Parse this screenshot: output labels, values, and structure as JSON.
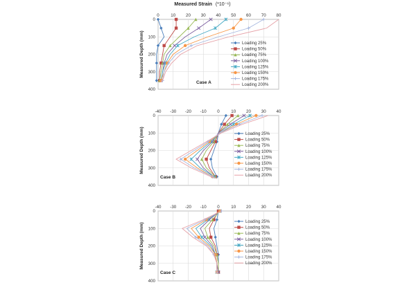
{
  "figure": {
    "title": "Measured Strain",
    "title_units": "(*10⁻⁶)",
    "ylabel": "Measured Depth (mm)"
  },
  "legend": [
    {
      "label": "Loading 25%",
      "color": "#4a7ebb",
      "marker": "diamond"
    },
    {
      "label": "Loading 50%",
      "color": "#be4b48",
      "marker": "square"
    },
    {
      "label": "Loading 75%",
      "color": "#98b954",
      "marker": "triangle"
    },
    {
      "label": "Loading 100%",
      "color": "#7d60a0",
      "marker": "x"
    },
    {
      "label": "Loading 125%",
      "color": "#46aac5",
      "marker": "star"
    },
    {
      "label": "Loading 150%",
      "color": "#f79646",
      "marker": "circle"
    },
    {
      "label": "Loading 175%",
      "color": "#a6b7df",
      "marker": "plus"
    },
    {
      "label": "Loading 200%",
      "color": "#e6a0a6",
      "marker": "none"
    }
  ],
  "chart_data": [
    {
      "type": "line",
      "case_label": "Case A",
      "xlabel": "Measured Strain (*10⁻⁶)",
      "ylabel": "Measured Depth (mm)",
      "xlim": [
        0,
        80
      ],
      "xticks": [
        0,
        10,
        20,
        30,
        40,
        50,
        60,
        70,
        80
      ],
      "ylim": [
        0,
        400
      ],
      "yticks": [
        0,
        100,
        200,
        300,
        400
      ],
      "y_inverted": true,
      "x_axis_position": "top",
      "grid": true,
      "legend_position": "right",
      "depths": [
        0,
        50,
        100,
        150,
        200,
        250,
        300,
        350,
        360
      ],
      "series": [
        {
          "name": "Loading 25%",
          "values": [
            0,
            2,
            4,
            0,
            -1,
            -1,
            -1,
            -1,
            -1
          ]
        },
        {
          "name": "Loading 50%",
          "values": [
            12,
            12,
            8,
            4,
            3,
            2,
            1,
            1,
            1
          ]
        },
        {
          "name": "Loading 75%",
          "values": [
            25,
            20,
            14,
            8,
            4,
            3,
            2,
            1,
            1
          ]
        },
        {
          "name": "Loading 100%",
          "values": [
            35,
            27,
            18,
            11,
            6,
            4,
            3,
            2,
            1
          ]
        },
        {
          "name": "Loading 125%",
          "values": [
            45,
            38,
            24,
            13,
            8,
            5,
            3,
            2,
            1
          ]
        },
        {
          "name": "Loading 150%",
          "values": [
            55,
            50,
            33,
            18,
            10,
            6,
            4,
            2,
            1
          ]
        },
        {
          "name": "Loading 175%",
          "values": [
            70,
            60,
            40,
            22,
            12,
            7,
            4,
            3,
            2
          ]
        },
        {
          "name": "Loading 200%",
          "values": [
            80,
            72,
            47,
            26,
            15,
            9,
            5,
            3,
            2
          ]
        }
      ]
    },
    {
      "type": "line",
      "case_label": "Case B",
      "xlim": [
        -40,
        40
      ],
      "xticks": [
        -40,
        -30,
        -20,
        -10,
        0,
        10,
        20,
        30,
        40
      ],
      "ylim": [
        0,
        400
      ],
      "yticks": [
        0,
        100,
        200,
        300,
        400
      ],
      "y_inverted": true,
      "x_axis_position": "top",
      "grid": true,
      "legend_position": "right",
      "depths": [
        0,
        50,
        100,
        150,
        200,
        250,
        300,
        350,
        360
      ],
      "series": [
        {
          "name": "Loading 25%",
          "values": [
            5,
            2,
            0,
            -1,
            -3,
            -5,
            -4,
            -1,
            -1
          ]
        },
        {
          "name": "Loading 50%",
          "values": [
            9,
            4,
            0,
            -2,
            -5,
            -8,
            -6,
            -2,
            -1
          ]
        },
        {
          "name": "Loading 75%",
          "values": [
            13,
            6,
            0,
            -3,
            -8,
            -11,
            -8,
            -2,
            -1
          ]
        },
        {
          "name": "Loading 100%",
          "values": [
            17,
            8,
            0,
            -4,
            -10,
            -14,
            -10,
            -3,
            -1
          ]
        },
        {
          "name": "Loading 125%",
          "values": [
            21,
            10,
            1,
            -5,
            -12,
            -18,
            -12,
            -3,
            -1
          ]
        },
        {
          "name": "Loading 150%",
          "values": [
            25,
            12,
            1,
            -6,
            -14,
            -22,
            -14,
            -4,
            -1
          ]
        },
        {
          "name": "Loading 175%",
          "values": [
            29,
            14,
            1,
            -7,
            -16,
            -25,
            -16,
            -4,
            -1
          ]
        },
        {
          "name": "Loading 200%",
          "values": [
            33,
            16,
            2,
            -8,
            -18,
            -28,
            -18,
            -5,
            -1
          ]
        }
      ]
    },
    {
      "type": "line",
      "case_label": "Case C",
      "xlim": [
        -40,
        40
      ],
      "xticks": [
        -40,
        -30,
        -20,
        -10,
        0,
        10,
        20,
        30,
        40
      ],
      "ylim": [
        0,
        400
      ],
      "yticks": [
        0,
        100,
        200,
        300,
        400
      ],
      "y_inverted": true,
      "x_axis_position": "top",
      "grid": true,
      "legend_position": "right",
      "depths": [
        0,
        50,
        100,
        150,
        200,
        250,
        300,
        350,
        360
      ],
      "series": [
        {
          "name": "Loading 25%",
          "values": [
            0,
            -1,
            -3,
            -2,
            -1,
            0,
            0,
            0,
            0
          ]
        },
        {
          "name": "Loading 50%",
          "values": [
            0,
            -3,
            -6,
            -5,
            -2,
            -1,
            0,
            0,
            0
          ]
        },
        {
          "name": "Loading 75%",
          "values": [
            1,
            -4,
            -9,
            -7,
            -3,
            -1,
            0,
            0,
            0
          ]
        },
        {
          "name": "Loading 100%",
          "values": [
            1,
            -6,
            -12,
            -9,
            -4,
            -2,
            -1,
            0,
            0
          ]
        },
        {
          "name": "Loading 125%",
          "values": [
            1,
            -7,
            -15,
            -11,
            -5,
            -2,
            -1,
            -1,
            0
          ]
        },
        {
          "name": "Loading 150%",
          "values": [
            1,
            -8,
            -18,
            -13,
            -6,
            -2,
            -1,
            -1,
            0
          ]
        },
        {
          "name": "Loading 175%",
          "values": [
            2,
            -9,
            -21,
            -15,
            -7,
            -3,
            -1,
            -1,
            0
          ]
        },
        {
          "name": "Loading 200%",
          "values": [
            2,
            -10,
            -24,
            -17,
            -8,
            -3,
            -1,
            -1,
            0
          ]
        }
      ]
    }
  ]
}
